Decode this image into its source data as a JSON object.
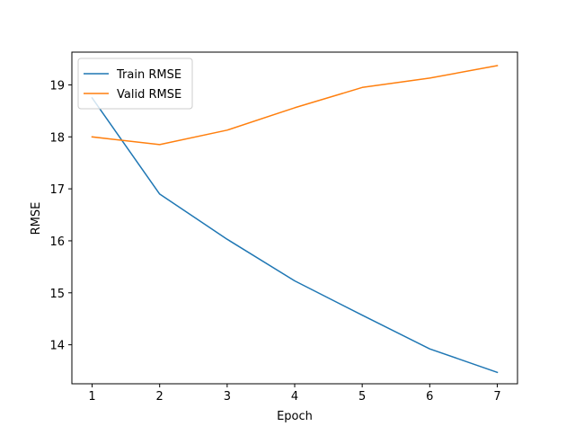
{
  "chart_data": {
    "type": "line",
    "title": "",
    "xlabel": "Epoch",
    "ylabel": "RMSE",
    "x": [
      1,
      2,
      3,
      4,
      5,
      6,
      7
    ],
    "xticks": [
      1,
      2,
      3,
      4,
      5,
      6,
      7
    ],
    "yticks": [
      14,
      15,
      16,
      17,
      18,
      19
    ],
    "xlim": [
      0.7,
      7.3
    ],
    "ylim": [
      13.25,
      19.63
    ],
    "grid": false,
    "legend_position": "upper-left",
    "series": [
      {
        "name": "Train RMSE",
        "color": "#1f77b4",
        "values": [
          18.75,
          16.9,
          16.03,
          15.23,
          14.57,
          13.92,
          13.47
        ]
      },
      {
        "name": "Valid RMSE",
        "color": "#ff7f0e",
        "values": [
          18.0,
          17.85,
          18.13,
          18.56,
          18.95,
          19.13,
          19.37
        ]
      }
    ]
  }
}
